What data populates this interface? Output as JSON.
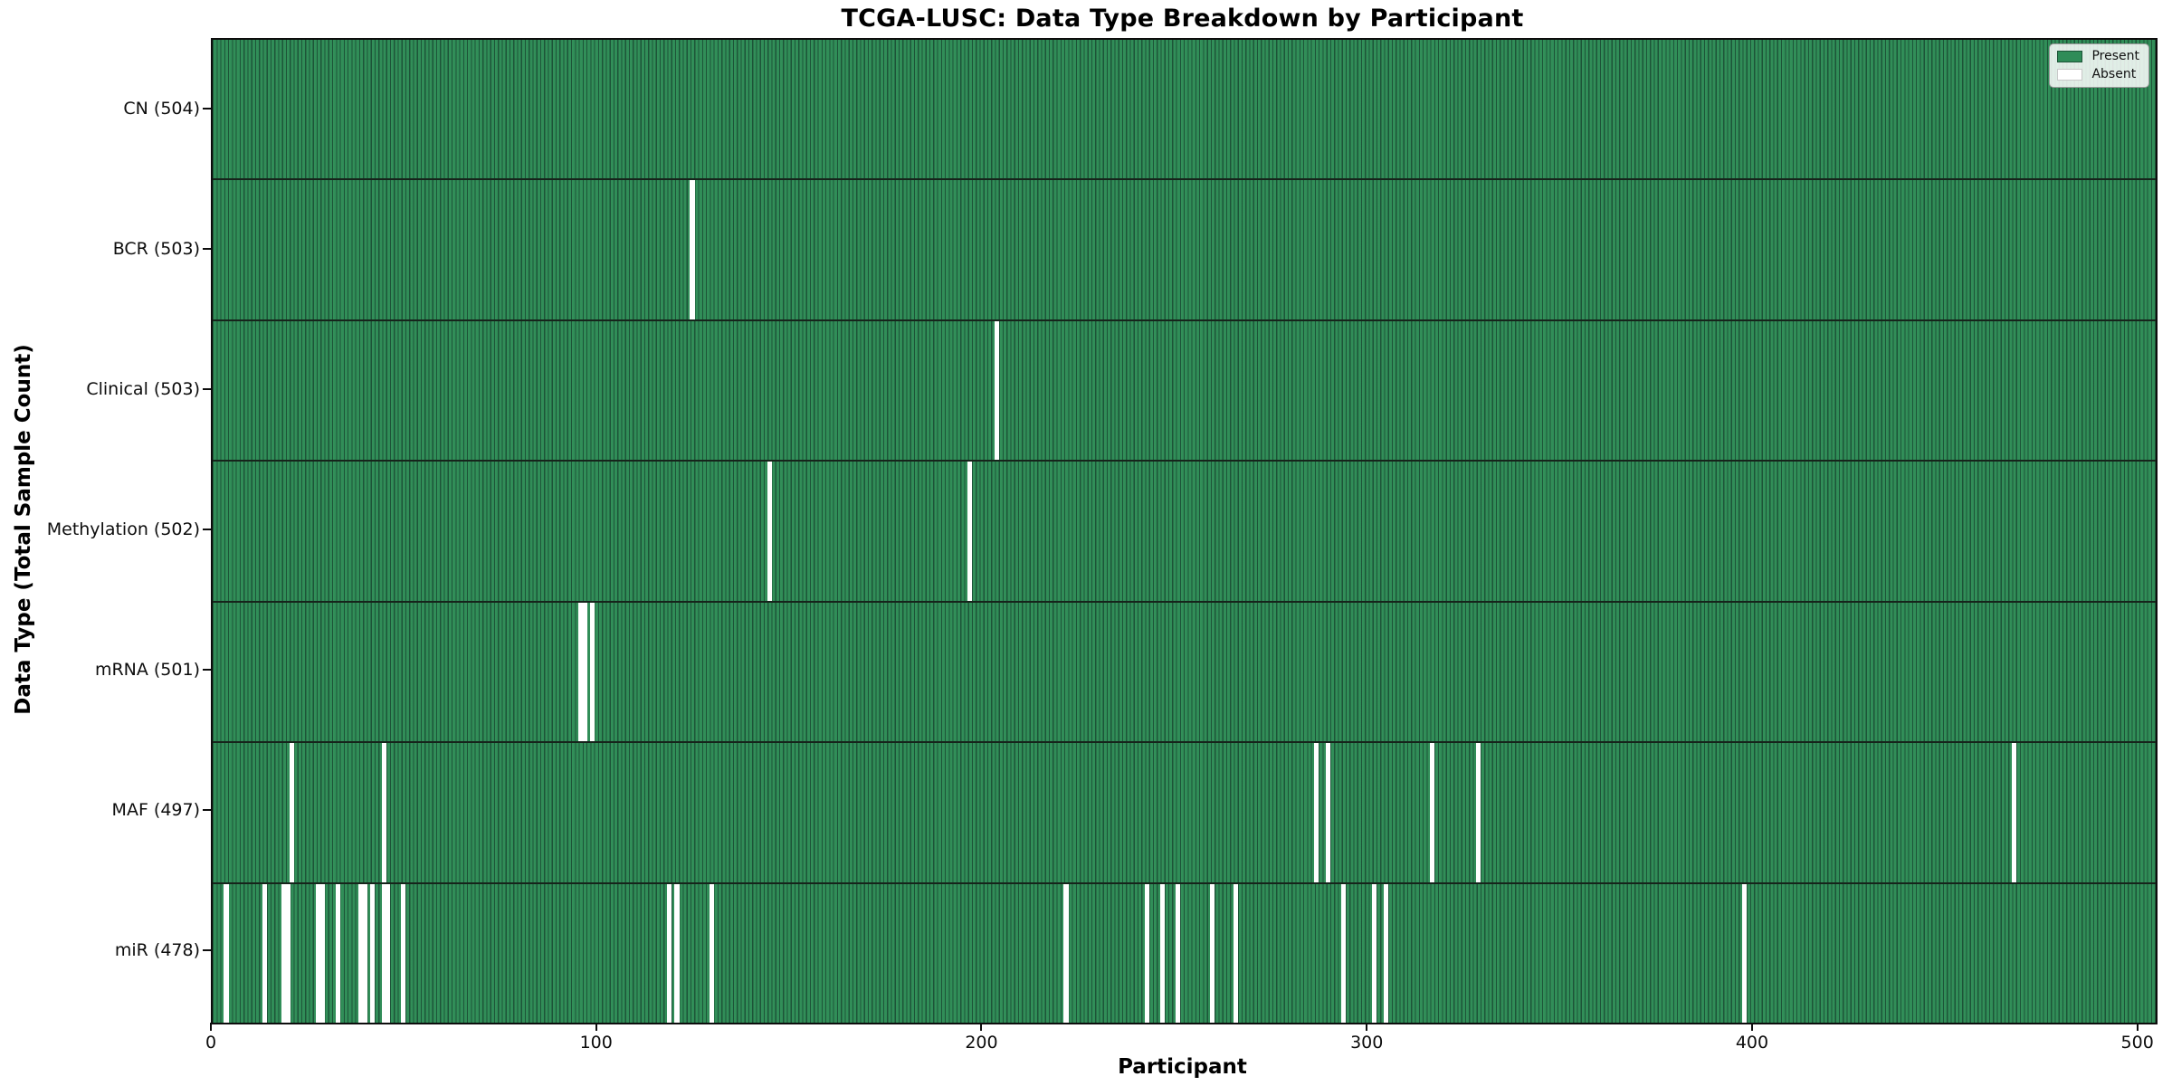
{
  "figure": {
    "title": "TCGA-LUSC: Data Type Breakdown by Participant",
    "xlabel": "Participant",
    "ylabel": "Data Type (Total Sample Count)"
  },
  "legend": {
    "present_label": "Present",
    "absent_label": "Absent"
  },
  "chart_data": {
    "type": "heatmap",
    "title": "TCGA-LUSC: Data Type Breakdown by Participant",
    "xlabel": "Participant",
    "ylabel": "Data Type (Total Sample Count)",
    "x_ticks": [
      0,
      100,
      200,
      300,
      400,
      500
    ],
    "xlim": [
      0,
      504
    ],
    "total_participants": 504,
    "present_color": "#2f8c58",
    "bar_edge_color": "#1d5438",
    "absent_color": "#ffffff",
    "grid": false,
    "legend_entries": [
      "Present",
      "Absent"
    ],
    "legend_position": "upper right",
    "rows": [
      {
        "label": "CN (504)",
        "data_type": "CN",
        "present_count": 504,
        "absent_participants": []
      },
      {
        "label": "BCR (503)",
        "data_type": "BCR",
        "present_count": 503,
        "absent_participants": [
          125
        ]
      },
      {
        "label": "Clinical (503)",
        "data_type": "Clinical",
        "present_count": 503,
        "absent_participants": [
          204
        ]
      },
      {
        "label": "Methylation (502)",
        "data_type": "Methylation",
        "present_count": 502,
        "absent_participants": [
          145,
          197
        ]
      },
      {
        "label": "mRNA (501)",
        "data_type": "mRNA",
        "present_count": 501,
        "absent_participants": [
          96,
          97,
          99
        ]
      },
      {
        "label": "MAF (497)",
        "data_type": "MAF",
        "present_count": 497,
        "absent_participants": [
          21,
          45,
          287,
          290,
          317,
          329,
          468
        ]
      },
      {
        "label": "miR (478)",
        "data_type": "miR",
        "present_count": 478,
        "absent_participants": [
          4,
          14,
          19,
          20,
          28,
          29,
          33,
          39,
          40,
          42,
          45,
          46,
          50,
          119,
          121,
          130,
          222,
          243,
          247,
          251,
          260,
          266,
          294,
          302,
          305,
          398
        ]
      }
    ]
  }
}
